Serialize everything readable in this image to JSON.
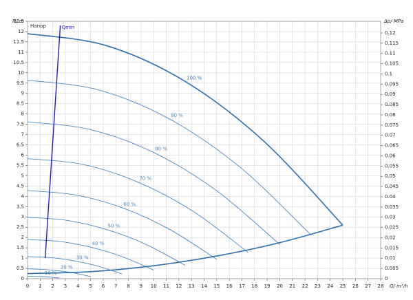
{
  "chart_data": {
    "type": "line",
    "title": "Напор",
    "ylabel": "H/ m",
    "y2label": "Δp/ MPa",
    "xlabel": "Q/ m³/h",
    "xlim": [
      0,
      28
    ],
    "xticks": [
      0,
      1,
      2,
      3,
      4,
      5,
      6,
      7,
      8,
      9,
      10,
      11,
      12,
      13,
      14,
      15,
      16,
      17,
      18,
      19,
      20,
      21,
      22,
      23,
      24,
      25,
      26,
      27,
      28
    ],
    "ylim": [
      0,
      12.5
    ],
    "yticks": [
      0,
      0.5,
      1,
      1.5,
      2,
      2.5,
      3,
      3.5,
      4,
      4.5,
      5,
      5.5,
      6,
      6.5,
      7,
      7.5,
      8,
      8.5,
      9,
      9.5,
      10,
      10.5,
      11,
      11.5,
      12,
      12.5
    ],
    "y2lim": [
      0,
      0.1257
    ],
    "y2ticks": [
      0,
      0.005,
      0.01,
      0.015,
      0.02,
      0.025,
      0.03,
      0.035,
      0.04,
      0.045,
      0.05,
      0.055,
      0.06,
      0.065,
      0.07,
      0.075,
      0.08,
      0.085,
      0.09,
      0.095,
      0.1,
      0.105,
      0.11,
      0.115,
      0.12
    ],
    "grid": true,
    "series": [
      {
        "name": "100 %",
        "color": "#2e6fad",
        "x": [
          0,
          6.25,
          12.5,
          18.75,
          25
        ],
        "values": [
          11.9,
          11.32,
          9.58,
          6.67,
          2.6
        ]
      },
      {
        "name": "90 %",
        "color": "#4a86c0",
        "x": [
          0,
          5.63,
          11.25,
          16.88,
          22.5
        ],
        "values": [
          9.64,
          9.17,
          7.76,
          5.4,
          2.11
        ]
      },
      {
        "name": "80 %",
        "color": "#4a86c0",
        "x": [
          0,
          5,
          10,
          15,
          20
        ],
        "values": [
          7.62,
          7.24,
          6.13,
          4.27,
          1.66
        ]
      },
      {
        "name": "70 %",
        "color": "#4a86c0",
        "x": [
          0,
          4.38,
          8.75,
          13.13,
          17.5
        ],
        "values": [
          5.83,
          5.55,
          4.69,
          3.27,
          1.27
        ]
      },
      {
        "name": "60 %",
        "color": "#4a86c0",
        "x": [
          0,
          3.75,
          7.5,
          11.25,
          15
        ],
        "values": [
          4.28,
          4.07,
          3.45,
          2.4,
          0.94
        ]
      },
      {
        "name": "50 %",
        "color": "#4a86c0",
        "x": [
          0,
          3.13,
          6.25,
          9.38,
          12.5
        ],
        "values": [
          2.98,
          2.83,
          2.39,
          1.67,
          0.65
        ]
      },
      {
        "name": "40 %",
        "color": "#4a86c0",
        "x": [
          0,
          2.5,
          5,
          7.5,
          10
        ],
        "values": [
          1.9,
          1.81,
          1.53,
          1.07,
          0.42
        ]
      },
      {
        "name": "30 %",
        "color": "#4a86c0",
        "x": [
          0,
          1.88,
          3.75,
          5.63,
          7.5
        ],
        "values": [
          1.07,
          1.02,
          0.86,
          0.6,
          0.23
        ]
      },
      {
        "name": "20 %",
        "color": "#4a86c0",
        "x": [
          0,
          1.25,
          2.5,
          3.75,
          5
        ],
        "values": [
          0.48,
          0.45,
          0.38,
          0.27,
          0.1
        ]
      },
      {
        "name": "10 %",
        "color": "#4a86c0",
        "x": [
          0,
          0.63,
          1.25,
          1.88,
          2.5
        ],
        "values": [
          0.12,
          0.11,
          0.1,
          0.07,
          0.03
        ]
      },
      {
        "color": "#2e6fad",
        "x": [
          0,
          5,
          10,
          15,
          20,
          25
        ],
        "values": [
          0.25,
          0.34,
          0.63,
          1.1,
          1.75,
          2.6
        ]
      },
      {
        "name": "Qmin",
        "color": "#1a1adb",
        "x": [
          1.4,
          2.6
        ],
        "values": [
          1.0,
          12.3
        ]
      }
    ]
  }
}
